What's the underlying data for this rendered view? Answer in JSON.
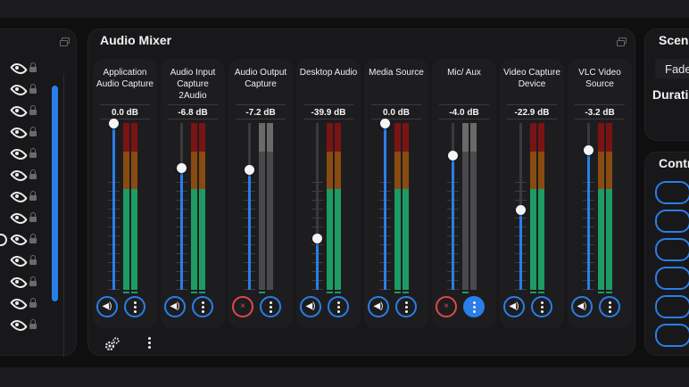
{
  "mixer": {
    "title": "Audio Mixer",
    "channels": [
      {
        "name": "Application Audio Capture",
        "db": "0.0 dB",
        "level": 1.0,
        "muted": false
      },
      {
        "name": "Audio Input Capture 2Audio",
        "db": "-6.8 dB",
        "level": 0.73,
        "muted": false
      },
      {
        "name": "Audio Output Capture",
        "db": "-7.2 dB",
        "level": 0.72,
        "muted": true
      },
      {
        "name": "Desktop Audio",
        "db": "-39.9 dB",
        "level": 0.31,
        "muted": false
      },
      {
        "name": "Media Source",
        "db": "0.0 dB",
        "level": 1.0,
        "muted": false
      },
      {
        "name": "Mic/ Aux",
        "db": "-4.0 dB",
        "level": 0.81,
        "muted": true
      },
      {
        "name": "Video Capture Device",
        "db": "-22.9 dB",
        "level": 0.48,
        "muted": false
      },
      {
        "name": "VLC Video Source",
        "db": "-3.2 dB",
        "level": 0.84,
        "muted": false
      }
    ]
  },
  "scene_transitions": {
    "title": "Scenes",
    "transition_value": "Fade",
    "duration_label": "Duration"
  },
  "controls": {
    "title": "Controls"
  },
  "icons": {
    "visibility": "eye-icon",
    "lock": "lock-icon",
    "mixer_settings": "gears-icon",
    "menu": "kebab-menu-icon",
    "speaker": "speaker-icon",
    "muted": "speaker-muted-icon"
  },
  "colors": {
    "accent": "#2a7ee8",
    "muted": "#e04848",
    "meter_green": "#1c9c64",
    "meter_orange": "#8a4b10",
    "meter_red": "#7a1414"
  }
}
